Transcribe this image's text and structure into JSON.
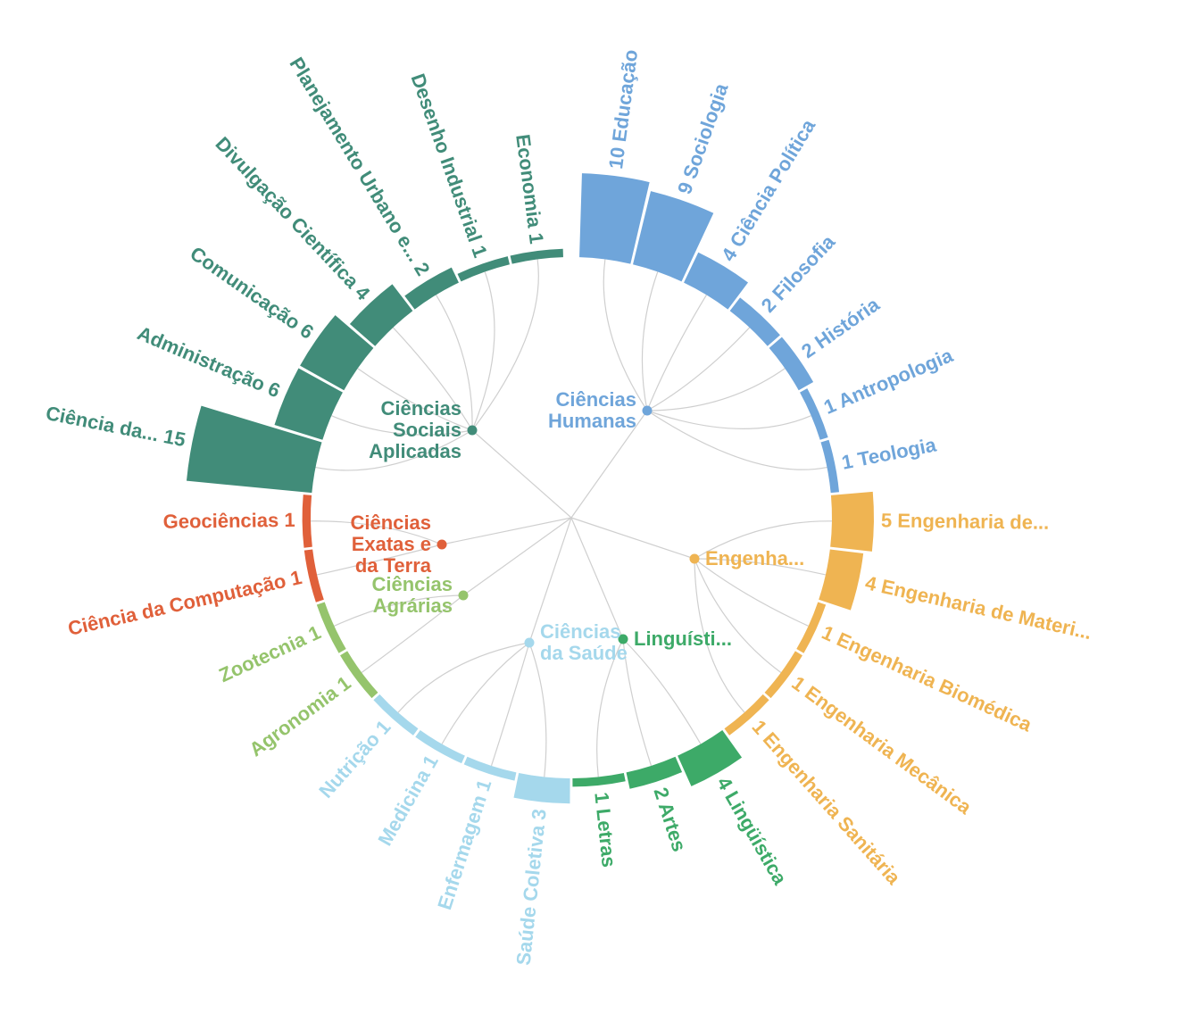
{
  "chart_data": {
    "type": "radial-hierarchy",
    "title": "",
    "categories": [
      {
        "name": "Ciências Humanas",
        "lines": [
          "Ciências",
          "Humanas"
        ],
        "color": "#6fa5da",
        "items": [
          {
            "label": "Educação",
            "value": 10
          },
          {
            "label": "Sociologia",
            "value": 9
          },
          {
            "label": "Ciência Política",
            "value": 4
          },
          {
            "label": "Filosofia",
            "value": 2
          },
          {
            "label": "História",
            "value": 2
          },
          {
            "label": "Antropologia",
            "value": 1
          },
          {
            "label": "Teologia",
            "value": 1
          }
        ]
      },
      {
        "name": "Engenha...",
        "lines": [
          "Engenha..."
        ],
        "color": "#efb452",
        "items": [
          {
            "label": "Engenharia de...",
            "value": 5
          },
          {
            "label": "Engenharia de Materi...",
            "value": 4
          },
          {
            "label": "Engenharia Biomédica",
            "value": 1
          },
          {
            "label": "Engenharia Mecânica",
            "value": 1
          },
          {
            "label": "Engenharia Sanitária",
            "value": 1
          }
        ]
      },
      {
        "name": "Linguísti...",
        "lines": [
          "Linguísti..."
        ],
        "color": "#3daa68",
        "items": [
          {
            "label": "Lingüística",
            "value": 4
          },
          {
            "label": "Artes",
            "value": 2
          },
          {
            "label": "Letras",
            "value": 1
          }
        ]
      },
      {
        "name": "Ciências da Saúde",
        "lines": [
          "Ciências",
          "da Saúde"
        ],
        "color": "#a5d8ec",
        "items": [
          {
            "label": "Saúde Coletiva",
            "value": 3
          },
          {
            "label": "Enfermagem",
            "value": 1
          },
          {
            "label": "Medicina",
            "value": 1
          },
          {
            "label": "Nutrição",
            "value": 1
          }
        ]
      },
      {
        "name": "Ciências Agrárias",
        "lines": [
          "Ciências",
          "Agrárias"
        ],
        "color": "#95c46c",
        "items": [
          {
            "label": "Agronomia",
            "value": 1
          },
          {
            "label": "Zootecnia",
            "value": 1
          }
        ]
      },
      {
        "name": "Ciências Exatas e da Terra",
        "lines": [
          "Ciências",
          "Exatas e",
          "da Terra"
        ],
        "color": "#e0603a",
        "items": [
          {
            "label": "Ciência da Computação",
            "value": 1
          },
          {
            "label": "Geociências",
            "value": 1
          }
        ]
      },
      {
        "name": "Ciências Sociais Aplicadas",
        "lines": [
          "Ciências",
          "Sociais",
          "Aplicadas"
        ],
        "color": "#418c79",
        "items": [
          {
            "label": "Ciência da...",
            "value": 15
          },
          {
            "label": "Administração",
            "value": 6
          },
          {
            "label": "Comunicação",
            "value": 6
          },
          {
            "label": "Divulgação Científica",
            "value": 4
          },
          {
            "label": "Planejamento Urbano e...",
            "value": 2
          },
          {
            "label": "Desenho Industrial",
            "value": 1
          },
          {
            "label": "Economia",
            "value": 1
          }
        ]
      }
    ]
  }
}
